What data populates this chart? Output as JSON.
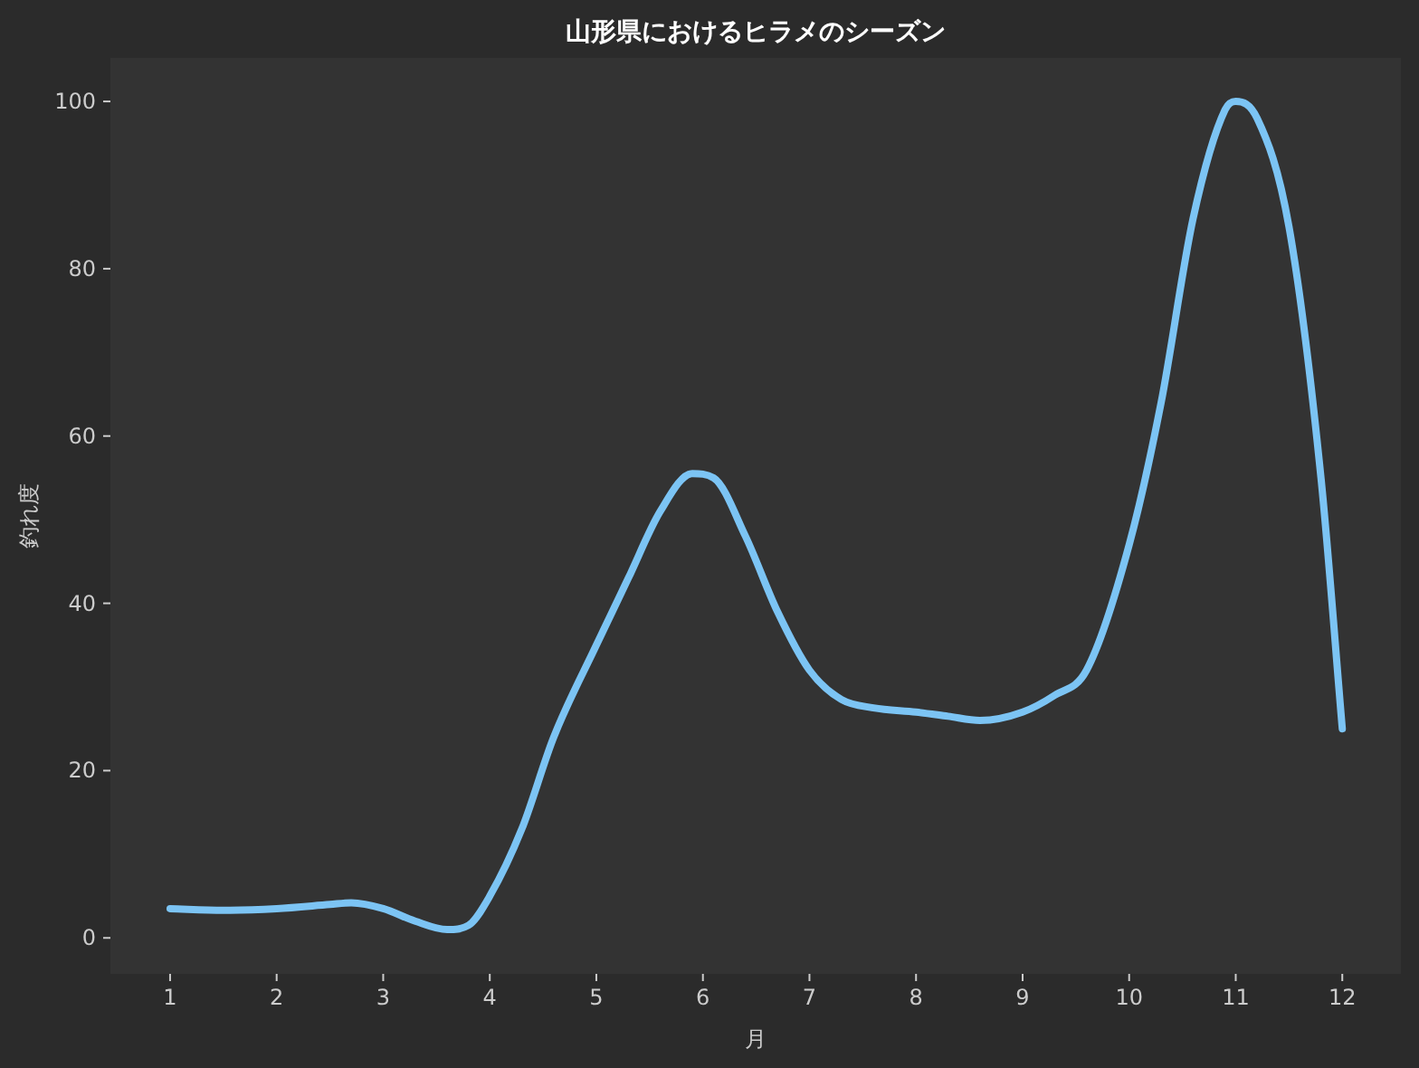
{
  "chart_data": {
    "type": "line",
    "title": "山形県におけるヒラメのシーズン",
    "xlabel": "月",
    "ylabel": "釣れ度",
    "x": [
      1,
      1.5,
      2,
      2.5,
      2.7,
      3,
      3.3,
      3.6,
      3.8,
      4,
      4.3,
      4.6,
      5,
      5.3,
      5.6,
      5.9,
      6.1,
      6.4,
      6.7,
      7,
      7.3,
      7.6,
      8,
      8.3,
      8.6,
      9,
      9.3,
      9.6,
      10,
      10.3,
      10.6,
      10.9,
      11,
      11.2,
      11.5,
      11.8,
      12
    ],
    "values": [
      3.5,
      3.3,
      3.5,
      4,
      4.2,
      3.5,
      2,
      1,
      1.5,
      5,
      13,
      24,
      35,
      43,
      51,
      55.5,
      55,
      48,
      39,
      32,
      28.5,
      27.5,
      27,
      26.5,
      26,
      27,
      29,
      32,
      47,
      64,
      86,
      99,
      100,
      98,
      85,
      55,
      25
    ],
    "color": "#7cc4f4",
    "xlim": [
      0.44,
      12.55
    ],
    "ylim": [
      -4.3,
      105.2
    ],
    "xticks": [
      1,
      2,
      3,
      4,
      5,
      6,
      7,
      8,
      9,
      10,
      11,
      12
    ],
    "yticks": [
      0,
      20,
      40,
      60,
      80,
      100
    ]
  }
}
